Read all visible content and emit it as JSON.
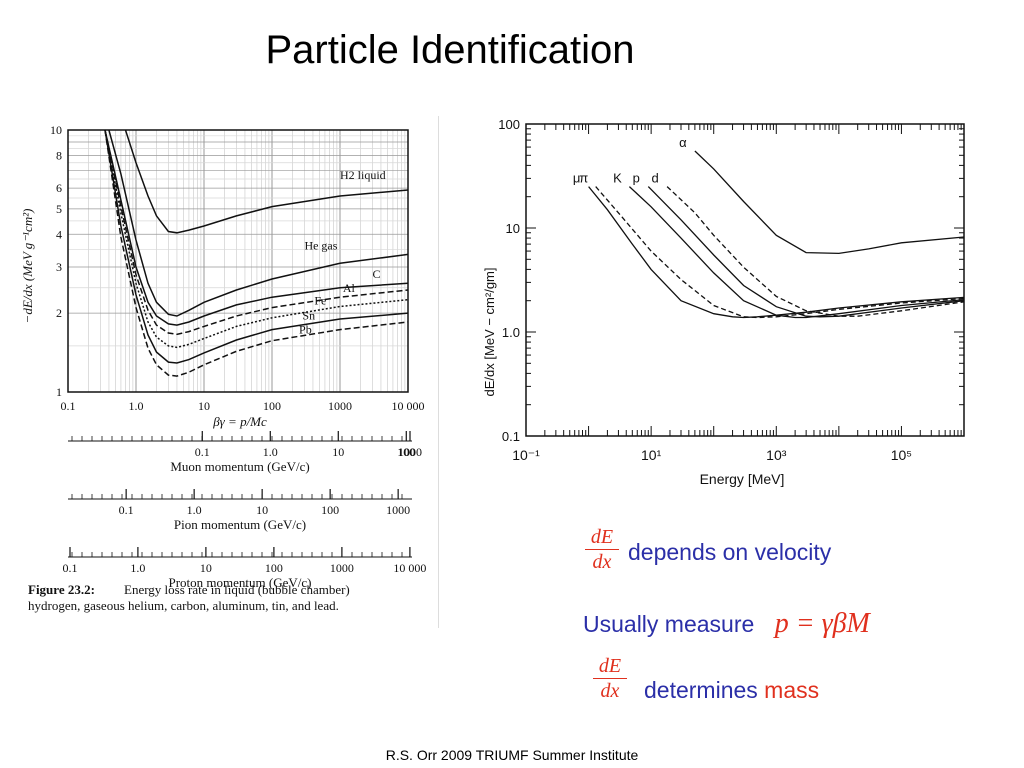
{
  "slide": {
    "title": "Particle Identification",
    "footer": "R.S. Orr 2009 TRIUMF Summer Institute"
  },
  "bullets": {
    "frac_numerator": "dE",
    "frac_denominator": "dx",
    "line1": "depends on velocity",
    "line2_text": "Usually measure",
    "line2_formula": "p = γβM",
    "line3_text": "determines",
    "line3_highlight": "mass"
  },
  "colors": {
    "accent_red": "#e0301e",
    "text_blue": "#2b2fa8"
  },
  "chart_data": [
    {
      "type": "line",
      "ylabel": "−dE/dx (MeV g⁻¹cm²)",
      "xlabel": "βγ = p/Mc",
      "xscale": "log",
      "yscale": "log",
      "xlim": [
        0.1,
        10000
      ],
      "ylim": [
        1,
        10
      ],
      "xticks": [
        "0.1",
        "1.0",
        "10",
        "100",
        "1000",
        "10 000"
      ],
      "yticks": [
        "1",
        "2",
        "3",
        "4",
        "5",
        "6",
        "8",
        "10"
      ],
      "grid": true,
      "series": [
        {
          "name": "H2 liquid",
          "x": [
            0.7,
            1,
            1.5,
            2,
            3,
            4,
            6,
            10,
            30,
            100,
            1000,
            10000
          ],
          "y": [
            10,
            7.5,
            5.6,
            4.7,
            4.1,
            4.05,
            4.15,
            4.3,
            4.7,
            5.1,
            5.6,
            5.9
          ]
        },
        {
          "name": "He gas",
          "x": [
            0.4,
            0.6,
            1,
            1.5,
            2,
            3,
            4,
            6,
            10,
            30,
            100,
            1000,
            10000
          ],
          "y": [
            10,
            6.8,
            3.8,
            2.6,
            2.2,
            1.98,
            1.95,
            2.05,
            2.2,
            2.45,
            2.7,
            3.1,
            3.35
          ]
        },
        {
          "name": "C",
          "x": [
            0.35,
            0.6,
            1,
            1.5,
            2,
            3,
            4,
            6,
            10,
            30,
            100,
            1000,
            10000
          ],
          "y": [
            10,
            5.4,
            3.0,
            2.2,
            1.95,
            1.82,
            1.8,
            1.85,
            1.95,
            2.15,
            2.3,
            2.5,
            2.6
          ]
        },
        {
          "name": "Al",
          "x": [
            0.35,
            0.6,
            1,
            1.5,
            2,
            3,
            4,
            6,
            10,
            30,
            100,
            1000,
            10000
          ],
          "y": [
            10,
            5.1,
            2.8,
            2.05,
            1.8,
            1.68,
            1.66,
            1.7,
            1.78,
            1.95,
            2.1,
            2.3,
            2.45
          ]
        },
        {
          "name": "Fe",
          "x": [
            0.35,
            0.6,
            1,
            1.5,
            2,
            3,
            4,
            6,
            10,
            30,
            100,
            1000,
            10000
          ],
          "y": [
            10,
            4.8,
            2.6,
            1.85,
            1.62,
            1.5,
            1.48,
            1.52,
            1.6,
            1.78,
            1.92,
            2.12,
            2.25
          ]
        },
        {
          "name": "Sn",
          "x": [
            0.35,
            0.6,
            1,
            1.5,
            2,
            3,
            4,
            6,
            10,
            30,
            100,
            1000,
            10000
          ],
          "y": [
            10,
            4.3,
            2.35,
            1.65,
            1.42,
            1.3,
            1.29,
            1.33,
            1.41,
            1.58,
            1.73,
            1.9,
            2.0
          ]
        },
        {
          "name": "Pb",
          "x": [
            0.35,
            0.6,
            1,
            1.5,
            2,
            3,
            4,
            6,
            10,
            30,
            100,
            1000,
            10000
          ],
          "y": [
            10,
            3.9,
            2.1,
            1.47,
            1.27,
            1.16,
            1.15,
            1.19,
            1.27,
            1.43,
            1.57,
            1.73,
            1.85
          ]
        }
      ],
      "extra_axes": [
        {
          "name": "Muon momentum (GeV/c)",
          "ticks": [
            "0.1",
            "1.0",
            "10",
            "100",
            "1000"
          ],
          "offset": 0.0106
        },
        {
          "name": "Pion momentum (GeV/c)",
          "ticks": [
            "0.1",
            "1.0",
            "10",
            "100",
            "1000"
          ],
          "offset": 0.1396
        },
        {
          "name": "Proton momentum (GeV/c)",
          "ticks": [
            "0.1",
            "1.0",
            "10",
            "100",
            "1000",
            "10 000"
          ],
          "offset": 0.938
        }
      ],
      "caption_label": "Figure 23.2:",
      "caption_text": "Energy loss rate in liquid (bubble chamber)",
      "caption_text2": "hydrogen, gaseous helium, carbon, aluminum, tin, and lead."
    },
    {
      "type": "line",
      "ylabel": "dE/dx [MeV − cm²/gm]",
      "xlabel": "Energy [MeV]",
      "xscale": "log",
      "yscale": "log",
      "xlim": [
        0.1,
        1000000
      ],
      "ylim": [
        0.1,
        100
      ],
      "xticks": [
        "10⁻¹",
        "10¹",
        "10³",
        "10⁵"
      ],
      "yticks": [
        "0.1",
        "1.0",
        "10",
        "100"
      ],
      "series": [
        {
          "name": "μ",
          "x": [
            1,
            2,
            5,
            10,
            30,
            100,
            200,
            300,
            500,
            1000,
            3000,
            10000,
            100000,
            1000000
          ],
          "y": [
            25,
            15,
            7,
            4,
            2,
            1.5,
            1.4,
            1.38,
            1.4,
            1.45,
            1.55,
            1.7,
            1.95,
            2.15
          ]
        },
        {
          "name": "π",
          "x": [
            1.3,
            3,
            10,
            30,
            100,
            300,
            500,
            1000,
            3000,
            10000,
            100000,
            1000000
          ],
          "y": [
            25,
            14,
            6,
            3.2,
            1.8,
            1.4,
            1.38,
            1.4,
            1.5,
            1.65,
            1.9,
            2.1
          ]
        },
        {
          "name": "K",
          "x": [
            4.5,
            10,
            30,
            100,
            300,
            1000,
            2000,
            3000,
            10000,
            100000,
            1000000
          ],
          "y": [
            25,
            16,
            8,
            3.7,
            2,
            1.45,
            1.38,
            1.38,
            1.5,
            1.8,
            2.05
          ]
        },
        {
          "name": "p",
          "x": [
            9,
            30,
            100,
            300,
            1000,
            3000,
            5000,
            10000,
            100000,
            1000000
          ],
          "y": [
            25,
            12,
            5.5,
            2.8,
            1.75,
            1.42,
            1.4,
            1.42,
            1.7,
            2.0
          ]
        },
        {
          "name": "d",
          "x": [
            18,
            50,
            100,
            300,
            1000,
            3000,
            10000,
            20000,
            100000,
            1000000
          ],
          "y": [
            25,
            14,
            8.5,
            4.2,
            2.2,
            1.6,
            1.42,
            1.42,
            1.6,
            1.95
          ]
        },
        {
          "name": "α",
          "x": [
            50,
            100,
            300,
            1000,
            3000,
            10000,
            30000,
            100000,
            1000000
          ],
          "y": [
            55,
            37,
            18,
            8.5,
            5.8,
            5.7,
            6.3,
            7.2,
            8.2
          ]
        }
      ]
    }
  ]
}
